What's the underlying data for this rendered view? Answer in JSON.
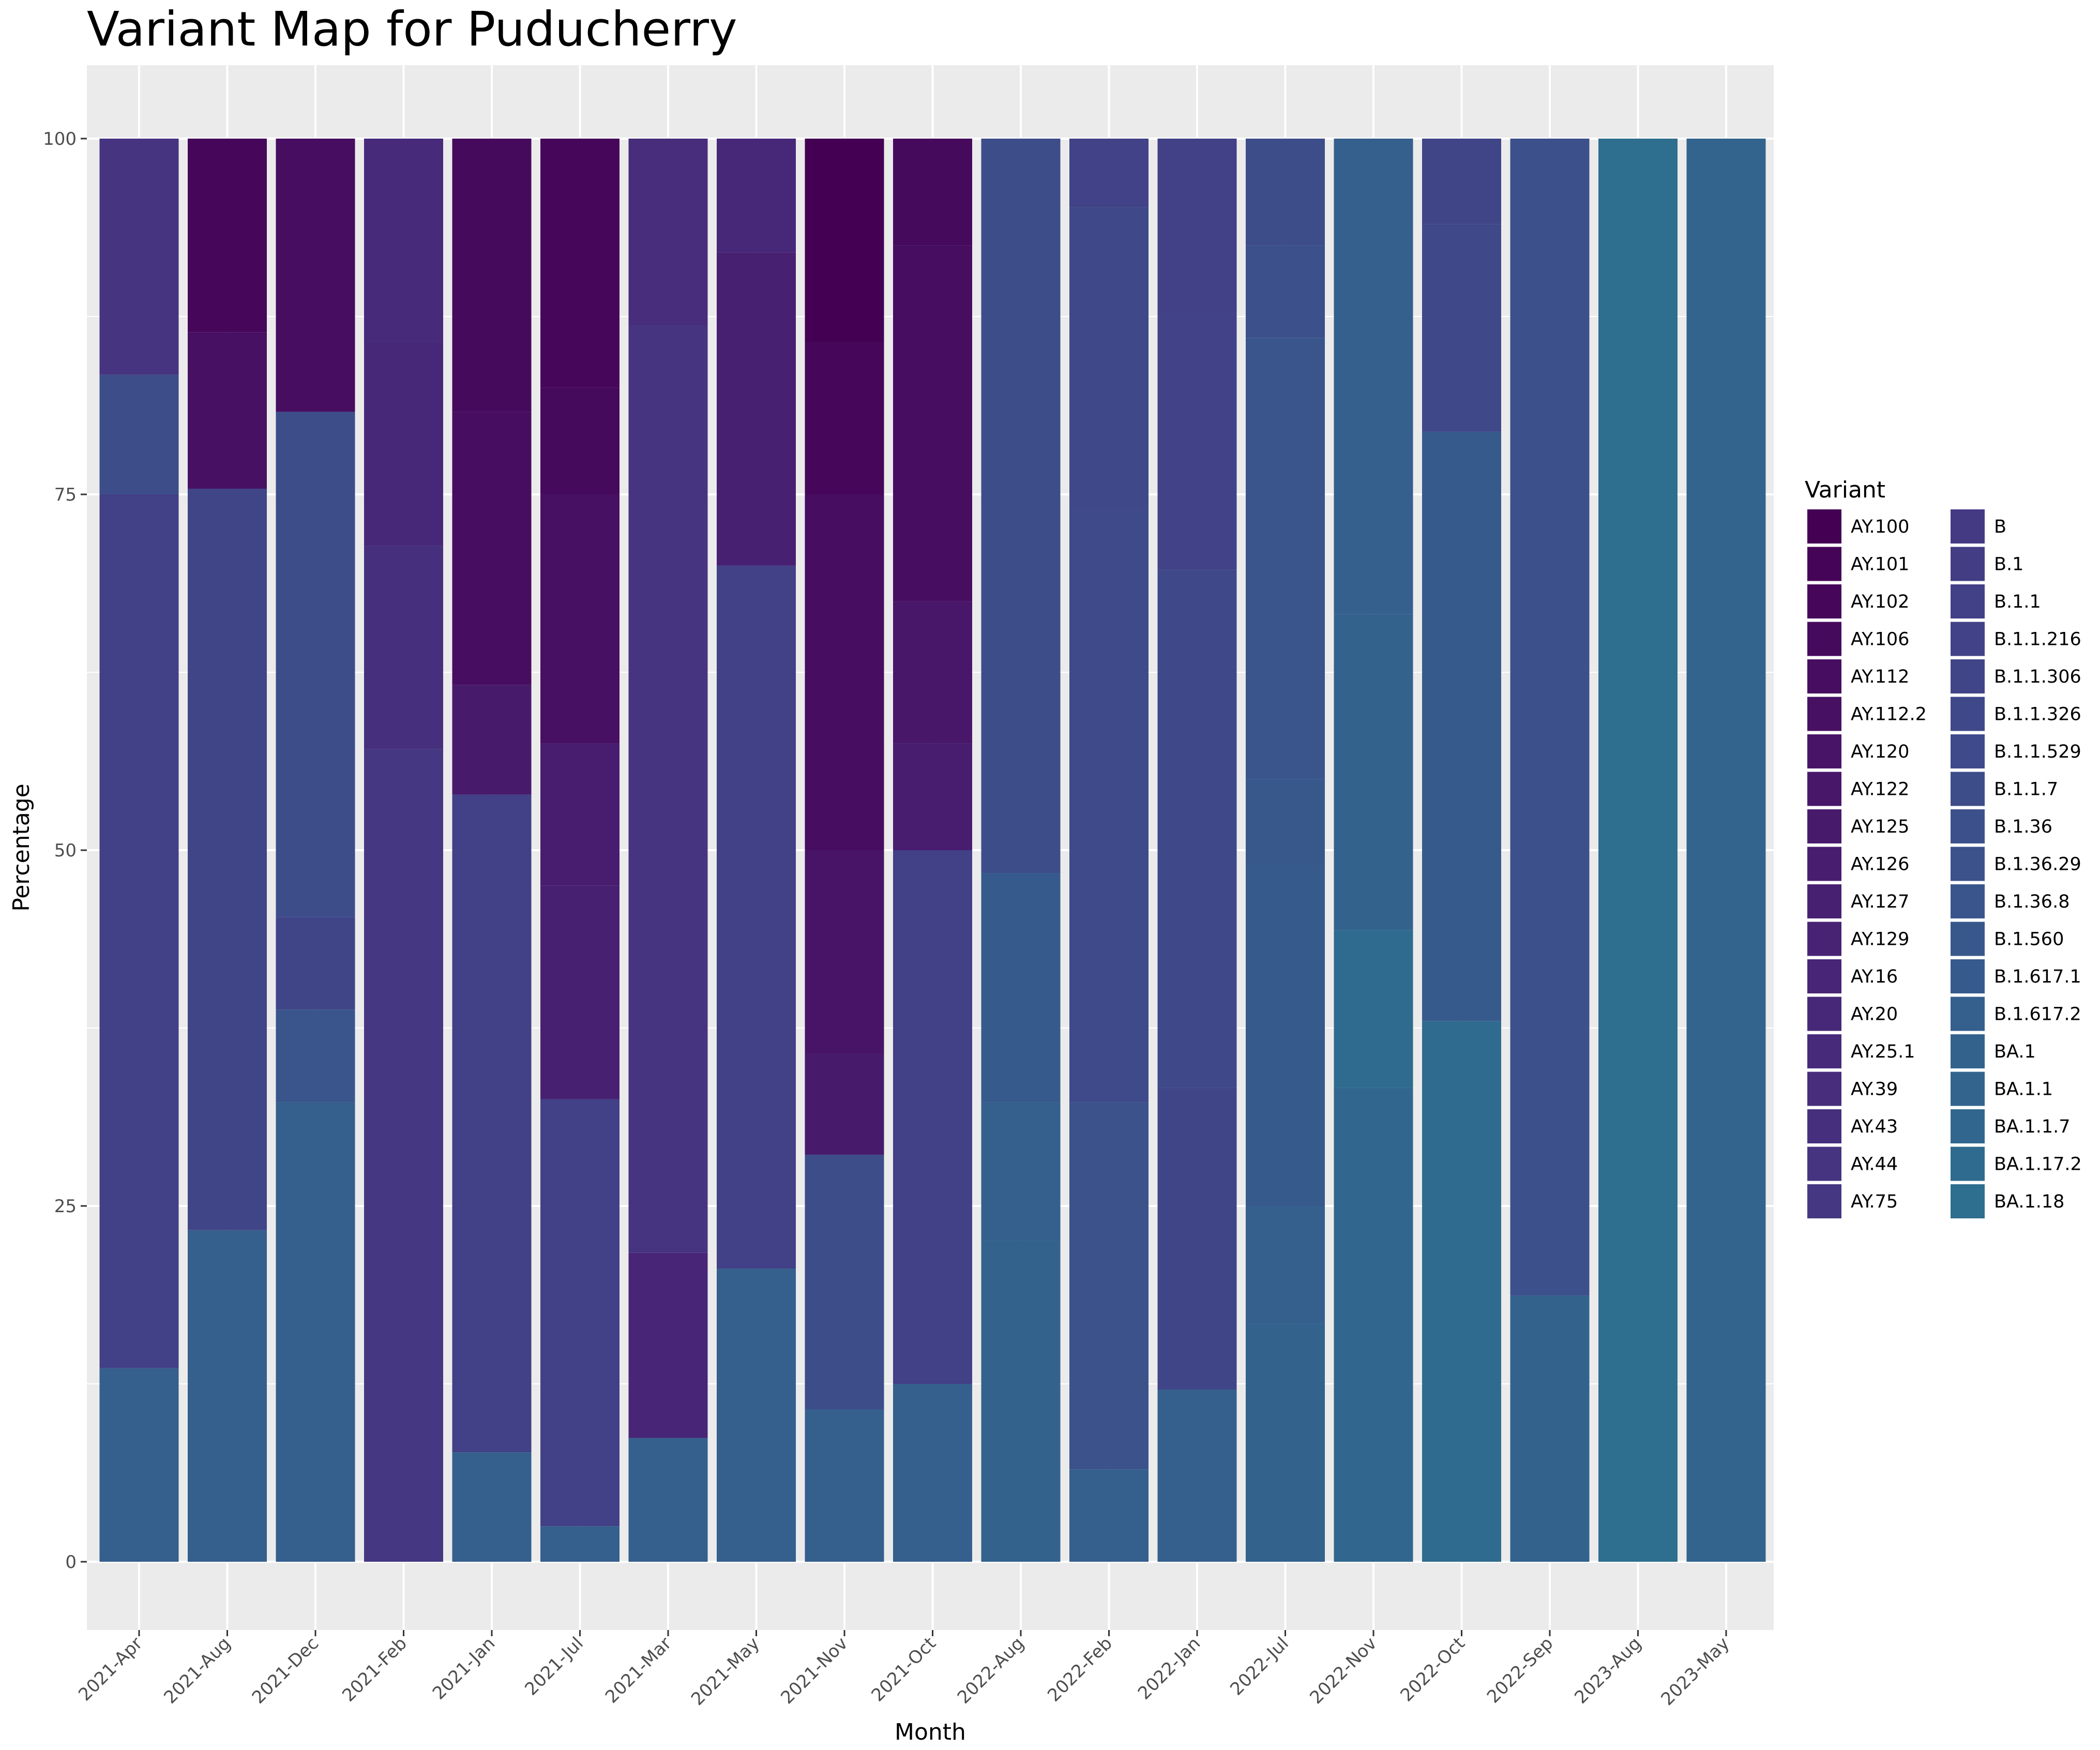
{
  "chart_data": {
    "type": "bar",
    "stacked": true,
    "title": "Variant Map for Puducherry",
    "xlabel": "Month",
    "ylabel": "Percentage",
    "ylim": [
      0,
      100
    ],
    "yticks": [
      0,
      25,
      50,
      75,
      100
    ],
    "grid": true,
    "legend_position": "right",
    "legend_title": "Variant",
    "categories": [
      "2021-Apr",
      "2021-Aug",
      "2021-Dec",
      "2021-Feb",
      "2021-Jan",
      "2021-Jul",
      "2021-Mar",
      "2021-May",
      "2021-Nov",
      "2021-Oct",
      "2022-Aug",
      "2022-Feb",
      "2022-Jan",
      "2022-Jul",
      "2022-Nov",
      "2022-Oct",
      "2022-Sep",
      "2023-Aug",
      "2023-May"
    ],
    "legend": [
      {
        "label": "AY.100",
        "color": "#440154"
      },
      {
        "label": "AY.101",
        "color": "#450457"
      },
      {
        "label": "AY.102",
        "color": "#46075a"
      },
      {
        "label": "AY.106",
        "color": "#460a5d"
      },
      {
        "label": "AY.112",
        "color": "#470d60"
      },
      {
        "label": "AY.112.2",
        "color": "#471063"
      },
      {
        "label": "AY.120",
        "color": "#481467"
      },
      {
        "label": "AY.122",
        "color": "#48176a"
      },
      {
        "label": "AY.125",
        "color": "#481a6c"
      },
      {
        "label": "AY.126",
        "color": "#481d6f"
      },
      {
        "label": "AY.127",
        "color": "#482071"
      },
      {
        "label": "AY.129",
        "color": "#482374"
      },
      {
        "label": "AY.16",
        "color": "#482576"
      },
      {
        "label": "AY.20",
        "color": "#472878"
      },
      {
        "label": "AY.25.1",
        "color": "#472a7a"
      },
      {
        "label": "AY.39",
        "color": "#472d7b"
      },
      {
        "label": "AY.43",
        "color": "#46307e"
      },
      {
        "label": "AY.44",
        "color": "#463480"
      },
      {
        "label": "AY.75",
        "color": "#453781"
      },
      {
        "label": "B",
        "color": "#443983"
      },
      {
        "label": "B.1",
        "color": "#433d84"
      },
      {
        "label": "B.1.1",
        "color": "#424086"
      },
      {
        "label": "B.1.1.216",
        "color": "#414287"
      },
      {
        "label": "B.1.1.306",
        "color": "#404588"
      },
      {
        "label": "B.1.1.326",
        "color": "#3f4889"
      },
      {
        "label": "B.1.1.529",
        "color": "#3e4a89"
      },
      {
        "label": "B.1.1.7",
        "color": "#3d4d8a"
      },
      {
        "label": "B.1.36",
        "color": "#3c508b"
      },
      {
        "label": "B.1.36.29",
        "color": "#3b528b"
      },
      {
        "label": "B.1.36.8",
        "color": "#39558c"
      },
      {
        "label": "B.1.560",
        "color": "#38588c"
      },
      {
        "label": "B.1.617.1",
        "color": "#375a8c"
      },
      {
        "label": "B.1.617.2",
        "color": "#355f8d"
      },
      {
        "label": "BA.1",
        "color": "#33628d"
      },
      {
        "label": "BA.1.1",
        "color": "#32648e"
      },
      {
        "label": "BA.1.1.7",
        "color": "#31678e"
      },
      {
        "label": "BA.1.17.2",
        "color": "#2f6b8e"
      },
      {
        "label": "BA.1.18",
        "color": "#2e6e8e"
      }
    ],
    "series": [
      {
        "category": "2021-Apr",
        "segments": [
          {
            "variant": "B.1.617.2",
            "value": 13.6
          },
          {
            "variant": "B.1.1",
            "value": 61.4
          },
          {
            "variant": "B.1.1.7",
            "value": 8.4
          },
          {
            "variant": "AY.44",
            "value": 16.6
          }
        ]
      },
      {
        "category": "2021-Aug",
        "segments": [
          {
            "variant": "B.1.617.2",
            "value": 23.3
          },
          {
            "variant": "B.1.1.306",
            "value": 52.1
          },
          {
            "variant": "AY.112.2",
            "value": 11.0
          },
          {
            "variant": "AY.102",
            "value": 13.6
          }
        ]
      },
      {
        "category": "2021-Dec",
        "segments": [
          {
            "variant": "B.1.617.2",
            "value": 32.3
          },
          {
            "variant": "B.1.36.8",
            "value": 6.5
          },
          {
            "variant": "B.1.1.306",
            "value": 6.5
          },
          {
            "variant": "B.1.1.7",
            "value": 35.5
          },
          {
            "variant": "AY.112",
            "value": 19.2
          }
        ]
      },
      {
        "category": "2021-Feb",
        "segments": [
          {
            "variant": "AY.75",
            "value": 57.1
          },
          {
            "variant": "AY.43",
            "value": 14.3
          },
          {
            "variant": "AY.20",
            "value": 14.3
          },
          {
            "variant": "AY.25.1",
            "value": 14.3
          }
        ]
      },
      {
        "category": "2021-Jan",
        "segments": [
          {
            "variant": "B.1.617.2",
            "value": 7.7
          },
          {
            "variant": "B.1.1",
            "value": 46.2
          },
          {
            "variant": "AY.125",
            "value": 7.7
          },
          {
            "variant": "AY.112",
            "value": 19.2
          },
          {
            "variant": "AY.106",
            "value": 19.2
          }
        ]
      },
      {
        "category": "2021-Jul",
        "segments": [
          {
            "variant": "B.1.617.2",
            "value": 2.5
          },
          {
            "variant": "B.1.1",
            "value": 30.0
          },
          {
            "variant": "AY.127",
            "value": 15.0
          },
          {
            "variant": "AY.126",
            "value": 10.0
          },
          {
            "variant": "AY.112.2",
            "value": 17.5
          },
          {
            "variant": "AY.106",
            "value": 7.5
          },
          {
            "variant": "AY.102",
            "value": 17.5
          }
        ]
      },
      {
        "category": "2021-Mar",
        "segments": [
          {
            "variant": "B.1.617.2",
            "value": 8.7
          },
          {
            "variant": "AY.16",
            "value": 13.0
          },
          {
            "variant": "AY.44",
            "value": 65.2
          },
          {
            "variant": "AY.39",
            "value": 13.1
          }
        ]
      },
      {
        "category": "2021-May",
        "segments": [
          {
            "variant": "B.1.617.2",
            "value": 20.6
          },
          {
            "variant": "B.1.1",
            "value": 49.4
          },
          {
            "variant": "AY.127",
            "value": 22.0
          },
          {
            "variant": "AY.20",
            "value": 8.0
          }
        ]
      },
      {
        "category": "2021-Nov",
        "segments": [
          {
            "variant": "B.1.617.2",
            "value": 10.7
          },
          {
            "variant": "B.1.1.7",
            "value": 17.9
          },
          {
            "variant": "AY.125",
            "value": 7.1
          },
          {
            "variant": "AY.120",
            "value": 14.3
          },
          {
            "variant": "AY.112",
            "value": 25.0
          },
          {
            "variant": "AY.102",
            "value": 10.7
          },
          {
            "variant": "AY.100",
            "value": 14.3
          }
        ]
      },
      {
        "category": "2021-Oct",
        "segments": [
          {
            "variant": "B.1.617.2",
            "value": 12.5
          },
          {
            "variant": "B.1.1",
            "value": 37.5
          },
          {
            "variant": "AY.126",
            "value": 7.5
          },
          {
            "variant": "AY.122",
            "value": 10.0
          },
          {
            "variant": "AY.112",
            "value": 25.0
          },
          {
            "variant": "AY.106",
            "value": 7.5
          }
        ]
      },
      {
        "category": "2022-Aug",
        "segments": [
          {
            "variant": "BA.1",
            "value": 22.6
          },
          {
            "variant": "B.1.617.2",
            "value": 9.7
          },
          {
            "variant": "B.1.617.1",
            "value": 16.1
          },
          {
            "variant": "B.1.1.7",
            "value": 51.6
          }
        ]
      },
      {
        "category": "2022-Feb",
        "segments": [
          {
            "variant": "B.1.617.2",
            "value": 6.5
          },
          {
            "variant": "B.1.36.29",
            "value": 25.8
          },
          {
            "variant": "B.1.1.529",
            "value": 41.9
          },
          {
            "variant": "B.1.1.326",
            "value": 21.0
          },
          {
            "variant": "B.1.1.216",
            "value": 4.8
          }
        ]
      },
      {
        "category": "2022-Jan",
        "segments": [
          {
            "variant": "B.1.617.2",
            "value": 12.1
          },
          {
            "variant": "B.1.1.306",
            "value": 21.2
          },
          {
            "variant": "B.1.1.326",
            "value": 36.4
          },
          {
            "variant": "B.1.1.216",
            "value": 18.2
          },
          {
            "variant": "B.1.1",
            "value": 12.1
          }
        ]
      },
      {
        "category": "2022-Jul",
        "segments": [
          {
            "variant": "BA.1",
            "value": 16.7
          },
          {
            "variant": "B.1.617.2",
            "value": 8.3
          },
          {
            "variant": "B.1.617.1",
            "value": 24.0
          },
          {
            "variant": "B.1.560",
            "value": 6.0
          },
          {
            "variant": "B.1.36.8",
            "value": 31.0
          },
          {
            "variant": "B.1.36",
            "value": 6.5
          },
          {
            "variant": "B.1.1.7",
            "value": 7.5
          }
        ]
      },
      {
        "category": "2022-Nov",
        "segments": [
          {
            "variant": "BA.1.1.7",
            "value": 33.3
          },
          {
            "variant": "BA.1.17.2",
            "value": 11.1
          },
          {
            "variant": "BA.1",
            "value": 22.2
          },
          {
            "variant": "B.1.617.2",
            "value": 33.4
          }
        ]
      },
      {
        "category": "2022-Oct",
        "segments": [
          {
            "variant": "BA.1.17.2",
            "value": 38.0
          },
          {
            "variant": "B.1.617.1",
            "value": 41.4
          },
          {
            "variant": "B.1.1.326",
            "value": 14.6
          },
          {
            "variant": "B.1.1.306",
            "value": 6.0
          }
        ]
      },
      {
        "category": "2022-Sep",
        "segments": [
          {
            "variant": "BA.1",
            "value": 18.7
          },
          {
            "variant": "B.1.36",
            "value": 81.3
          }
        ]
      },
      {
        "category": "2023-Aug",
        "segments": [
          {
            "variant": "BA.1.18",
            "value": 100
          }
        ]
      },
      {
        "category": "2023-May",
        "segments": [
          {
            "variant": "BA.1.1",
            "value": 100
          }
        ]
      }
    ]
  }
}
